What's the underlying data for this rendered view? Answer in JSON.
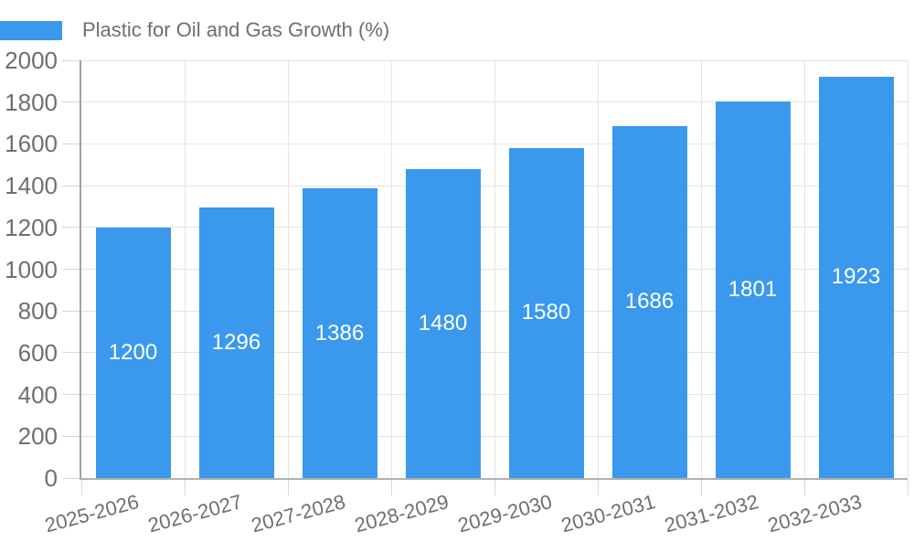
{
  "chart_data": {
    "type": "bar",
    "title": "Plastic for Oil and Gas Growth (%)",
    "categories": [
      "2025-2026",
      "2026-2027",
      "2027-2028",
      "2028-2029",
      "2029-2030",
      "2030-2031",
      "2031-2032",
      "2032-2033"
    ],
    "values": [
      1200,
      1296,
      1386,
      1480,
      1580,
      1686,
      1801,
      1923
    ],
    "xlabel": "",
    "ylabel": "",
    "ylim": [
      0,
      2000
    ],
    "ytick_step": 200,
    "yticks": [
      0,
      200,
      400,
      600,
      800,
      1000,
      1200,
      1400,
      1600,
      1800,
      2000
    ],
    "grid": true,
    "legend_position": "top",
    "bar_color": "#3a99ed",
    "value_label_color": "#ffffff",
    "axis_text_color": "#6f6f6f",
    "gridline_color": "#e4e4e4",
    "axis_line_color": "#a2a2a2"
  }
}
